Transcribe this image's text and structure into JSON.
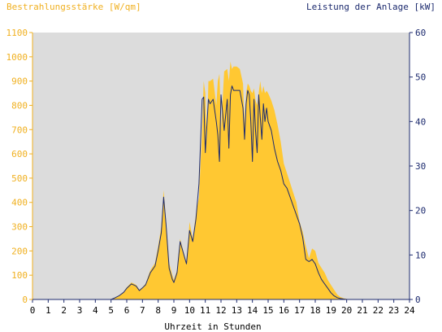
{
  "chart_data": {
    "type": "area",
    "left_axis_label": "Bestrahlungsstärke [W/qm]",
    "right_axis_label": "Leistung der Anlage [kW]",
    "xlabel": "Uhrzeit in Stunden",
    "xlim": [
      0,
      24
    ],
    "ylim_left": [
      0,
      1100
    ],
    "ylim_right": [
      0,
      60
    ],
    "x_ticks": [
      "0",
      "1",
      "2",
      "3",
      "4",
      "5",
      "6",
      "7",
      "8",
      "9",
      "10",
      "11",
      "12",
      "13",
      "14",
      "15",
      "16",
      "17",
      "18",
      "19",
      "20",
      "21",
      "22",
      "23",
      "24"
    ],
    "y_ticks_left": [
      "0",
      "100",
      "200",
      "300",
      "400",
      "500",
      "600",
      "700",
      "800",
      "900",
      "1000",
      "1100"
    ],
    "y_ticks_right": [
      "0",
      "10",
      "20",
      "30",
      "40",
      "50",
      "60"
    ],
    "grid": false,
    "colors": {
      "irradiance_fill": "#ffc832",
      "power_line": "#1c2a6e",
      "plot_background": "#dcdcdc",
      "left_axis_text": "#f0b020",
      "right_axis_text": "#1c2a6e"
    },
    "series": [
      {
        "name": "Bestrahlungsstärke [W/qm]",
        "axis": "left",
        "style": "area",
        "x": [
          0,
          5.0,
          5.2,
          5.5,
          5.8,
          6.0,
          6.3,
          6.6,
          6.8,
          7.0,
          7.2,
          7.5,
          7.8,
          8.0,
          8.2,
          8.35,
          8.5,
          8.7,
          8.9,
          9.0,
          9.2,
          9.4,
          9.6,
          9.8,
          10.0,
          10.2,
          10.4,
          10.6,
          10.8,
          10.9,
          11.0,
          11.1,
          11.2,
          11.3,
          11.5,
          11.7,
          11.8,
          11.9,
          12.0,
          12.2,
          12.4,
          12.5,
          12.6,
          12.7,
          12.8,
          13.0,
          13.2,
          13.4,
          13.5,
          13.6,
          13.7,
          13.8,
          13.9,
          14.0,
          14.1,
          14.2,
          14.3,
          14.4,
          14.5,
          14.6,
          14.7,
          14.8,
          14.9,
          15.0,
          15.2,
          15.4,
          15.6,
          15.8,
          16.0,
          16.2,
          16.4,
          16.6,
          16.8,
          17.0,
          17.2,
          17.4,
          17.6,
          17.8,
          18.0,
          18.2,
          18.4,
          18.6,
          18.8,
          19.0,
          19.2,
          19.4,
          19.6,
          19.8,
          20.0,
          20.2,
          24
        ],
        "values": [
          0,
          0,
          5,
          15,
          30,
          50,
          70,
          60,
          40,
          50,
          65,
          120,
          150,
          220,
          300,
          450,
          330,
          150,
          100,
          80,
          120,
          250,
          200,
          150,
          320,
          250,
          350,
          420,
          700,
          900,
          850,
          650,
          900,
          900,
          910,
          800,
          900,
          930,
          700,
          940,
          950,
          900,
          980,
          950,
          960,
          960,
          950,
          890,
          720,
          850,
          890,
          880,
          860,
          850,
          870,
          820,
          800,
          850,
          900,
          850,
          880,
          850,
          860,
          850,
          820,
          780,
          720,
          650,
          560,
          520,
          480,
          440,
          400,
          320,
          280,
          220,
          170,
          210,
          200,
          150,
          130,
          110,
          80,
          60,
          40,
          20,
          10,
          5,
          2,
          0,
          0
        ]
      },
      {
        "name": "Leistung der Anlage [kW]",
        "axis": "right",
        "style": "line",
        "x": [
          0,
          5.0,
          5.2,
          5.5,
          5.8,
          6.0,
          6.3,
          6.6,
          6.8,
          7.0,
          7.2,
          7.5,
          7.8,
          8.0,
          8.2,
          8.35,
          8.5,
          8.7,
          8.9,
          9.0,
          9.2,
          9.4,
          9.6,
          9.8,
          10.0,
          10.2,
          10.4,
          10.6,
          10.8,
          10.9,
          11.0,
          11.1,
          11.2,
          11.3,
          11.5,
          11.7,
          11.8,
          11.9,
          12.0,
          12.2,
          12.4,
          12.5,
          12.6,
          12.7,
          12.8,
          13.0,
          13.2,
          13.4,
          13.5,
          13.6,
          13.7,
          13.8,
          13.9,
          14.0,
          14.1,
          14.2,
          14.3,
          14.4,
          14.5,
          14.6,
          14.7,
          14.8,
          14.9,
          15.0,
          15.2,
          15.4,
          15.6,
          15.8,
          16.0,
          16.2,
          16.4,
          16.6,
          16.8,
          17.0,
          17.2,
          17.4,
          17.6,
          17.8,
          18.0,
          18.2,
          18.4,
          18.6,
          18.8,
          19.0,
          19.2,
          19.4,
          19.6,
          19.8,
          20.0,
          20.2,
          24
        ],
        "values": [
          0,
          0,
          0.3,
          0.8,
          1.6,
          2.5,
          3.5,
          3.0,
          2.0,
          2.6,
          3.3,
          6.0,
          7.5,
          11,
          15,
          23,
          17,
          7,
          4.5,
          3.8,
          6,
          13,
          10.5,
          8,
          15.5,
          13,
          18,
          26,
          45,
          45.5,
          33,
          39,
          45,
          44,
          45,
          40,
          37,
          31,
          46,
          38,
          45,
          34,
          46,
          48,
          47,
          47,
          47,
          43,
          36,
          44,
          47,
          46,
          40,
          31,
          45,
          38,
          33,
          46,
          41,
          36,
          44,
          40,
          43,
          40,
          38,
          34,
          31,
          29,
          26,
          25,
          23,
          21,
          19,
          17,
          14,
          9,
          8.5,
          9,
          8,
          6,
          4.5,
          3.5,
          2.5,
          1.5,
          0.8,
          0.4,
          0.2,
          0.1,
          0,
          0,
          0
        ]
      }
    ]
  }
}
